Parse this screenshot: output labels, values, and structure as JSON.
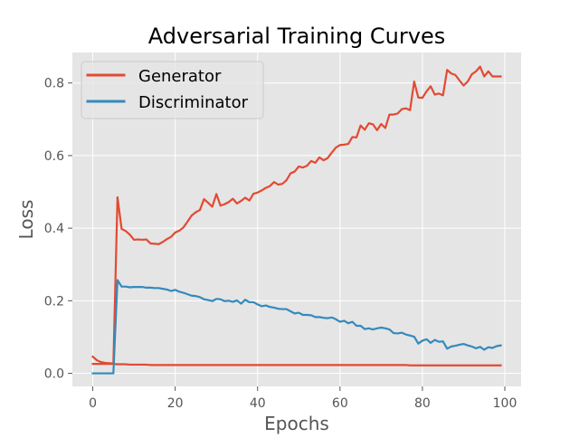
{
  "chart_data": {
    "type": "line",
    "title": "Adversarial Training Curves",
    "xlabel": "Epochs",
    "ylabel": "Loss",
    "xlim": [
      -4.95,
      103.95
    ],
    "ylim": [
      -0.036,
      0.884
    ],
    "xticks": [
      0,
      20,
      40,
      60,
      80,
      100
    ],
    "yticks": [
      0.0,
      0.2,
      0.4,
      0.6,
      0.8
    ],
    "xtick_labels": [
      "0",
      "20",
      "40",
      "60",
      "80",
      "100"
    ],
    "ytick_labels": [
      "0.0",
      "0.2",
      "0.4",
      "0.6",
      "0.8"
    ],
    "grid": true,
    "legend_position": "upper-left",
    "x": [
      0,
      1,
      2,
      3,
      4,
      5,
      6,
      7,
      8,
      9,
      10,
      11,
      12,
      13,
      14,
      15,
      16,
      17,
      18,
      19,
      20,
      21,
      22,
      23,
      24,
      25,
      26,
      27,
      28,
      29,
      30,
      31,
      32,
      33,
      34,
      35,
      36,
      37,
      38,
      39,
      40,
      41,
      42,
      43,
      44,
      45,
      46,
      47,
      48,
      49,
      50,
      51,
      52,
      53,
      54,
      55,
      56,
      57,
      58,
      59,
      60,
      61,
      62,
      63,
      64,
      65,
      66,
      67,
      68,
      69,
      70,
      71,
      72,
      73,
      74,
      75,
      76,
      77,
      78,
      79,
      80,
      81,
      82,
      83,
      84,
      85,
      86,
      87,
      88,
      89,
      90,
      91,
      92,
      93,
      94,
      95,
      96,
      97,
      98,
      99
    ],
    "series": [
      {
        "name": "Generator",
        "color": "#e24a33",
        "values": [
          0.046,
          0.036,
          0.031,
          0.029,
          0.028,
          0.027,
          0.485,
          0.398,
          0.392,
          0.382,
          0.368,
          0.369,
          0.368,
          0.369,
          0.358,
          0.357,
          0.356,
          0.362,
          0.37,
          0.376,
          0.388,
          0.393,
          0.402,
          0.418,
          0.435,
          0.444,
          0.45,
          0.48,
          0.47,
          0.459,
          0.494,
          0.462,
          0.466,
          0.472,
          0.481,
          0.468,
          0.475,
          0.484,
          0.476,
          0.495,
          0.498,
          0.504,
          0.511,
          0.516,
          0.527,
          0.52,
          0.522,
          0.532,
          0.551,
          0.556,
          0.57,
          0.567,
          0.572,
          0.585,
          0.58,
          0.595,
          0.587,
          0.593,
          0.608,
          0.622,
          0.629,
          0.63,
          0.632,
          0.651,
          0.65,
          0.683,
          0.671,
          0.689,
          0.686,
          0.67,
          0.687,
          0.676,
          0.713,
          0.713,
          0.716,
          0.728,
          0.73,
          0.725,
          0.804,
          0.76,
          0.759,
          0.777,
          0.791,
          0.768,
          0.771,
          0.766,
          0.836,
          0.826,
          0.822,
          0.807,
          0.793,
          0.804,
          0.824,
          0.832,
          0.845,
          0.818,
          0.832,
          0.818,
          0.818,
          0.818
        ]
      },
      {
        "name": "",
        "color": "#e24a33",
        "values": [
          0.026,
          0.026,
          0.026,
          0.026,
          0.026,
          0.026,
          0.025,
          0.025,
          0.025,
          0.024,
          0.024,
          0.024,
          0.024,
          0.024,
          0.023,
          0.023,
          0.023,
          0.023,
          0.023,
          0.023,
          0.023,
          0.023,
          0.023,
          0.023,
          0.023,
          0.023,
          0.023,
          0.023,
          0.023,
          0.023,
          0.023,
          0.023,
          0.023,
          0.023,
          0.023,
          0.023,
          0.023,
          0.023,
          0.023,
          0.023,
          0.023,
          0.023,
          0.023,
          0.023,
          0.023,
          0.023,
          0.023,
          0.023,
          0.023,
          0.023,
          0.023,
          0.023,
          0.023,
          0.023,
          0.023,
          0.023,
          0.023,
          0.023,
          0.023,
          0.023,
          0.023,
          0.023,
          0.023,
          0.023,
          0.023,
          0.023,
          0.023,
          0.023,
          0.023,
          0.023,
          0.023,
          0.023,
          0.023,
          0.023,
          0.023,
          0.023,
          0.023,
          0.022,
          0.022,
          0.022,
          0.022,
          0.022,
          0.022,
          0.022,
          0.022,
          0.022,
          0.022,
          0.022,
          0.022,
          0.022,
          0.022,
          0.022,
          0.022,
          0.022,
          0.022,
          0.022,
          0.022,
          0.022,
          0.022,
          0.022
        ]
      },
      {
        "name": "Discriminator",
        "color": "#348abd",
        "values": [
          0.0,
          0.0,
          0.0,
          0.0,
          0.0,
          0.0,
          0.257,
          0.239,
          0.239,
          0.237,
          0.238,
          0.238,
          0.238,
          0.236,
          0.236,
          0.235,
          0.235,
          0.233,
          0.231,
          0.227,
          0.23,
          0.225,
          0.222,
          0.218,
          0.214,
          0.213,
          0.21,
          0.204,
          0.202,
          0.199,
          0.205,
          0.204,
          0.199,
          0.2,
          0.197,
          0.201,
          0.192,
          0.203,
          0.196,
          0.196,
          0.19,
          0.185,
          0.187,
          0.183,
          0.181,
          0.178,
          0.177,
          0.177,
          0.171,
          0.165,
          0.167,
          0.161,
          0.161,
          0.16,
          0.155,
          0.155,
          0.153,
          0.152,
          0.154,
          0.149,
          0.142,
          0.145,
          0.138,
          0.142,
          0.131,
          0.131,
          0.122,
          0.124,
          0.121,
          0.124,
          0.126,
          0.124,
          0.121,
          0.111,
          0.11,
          0.112,
          0.107,
          0.104,
          0.101,
          0.082,
          0.09,
          0.094,
          0.084,
          0.092,
          0.087,
          0.088,
          0.068,
          0.074,
          0.076,
          0.079,
          0.081,
          0.077,
          0.074,
          0.069,
          0.073,
          0.065,
          0.072,
          0.07,
          0.075,
          0.077
        ]
      }
    ]
  }
}
